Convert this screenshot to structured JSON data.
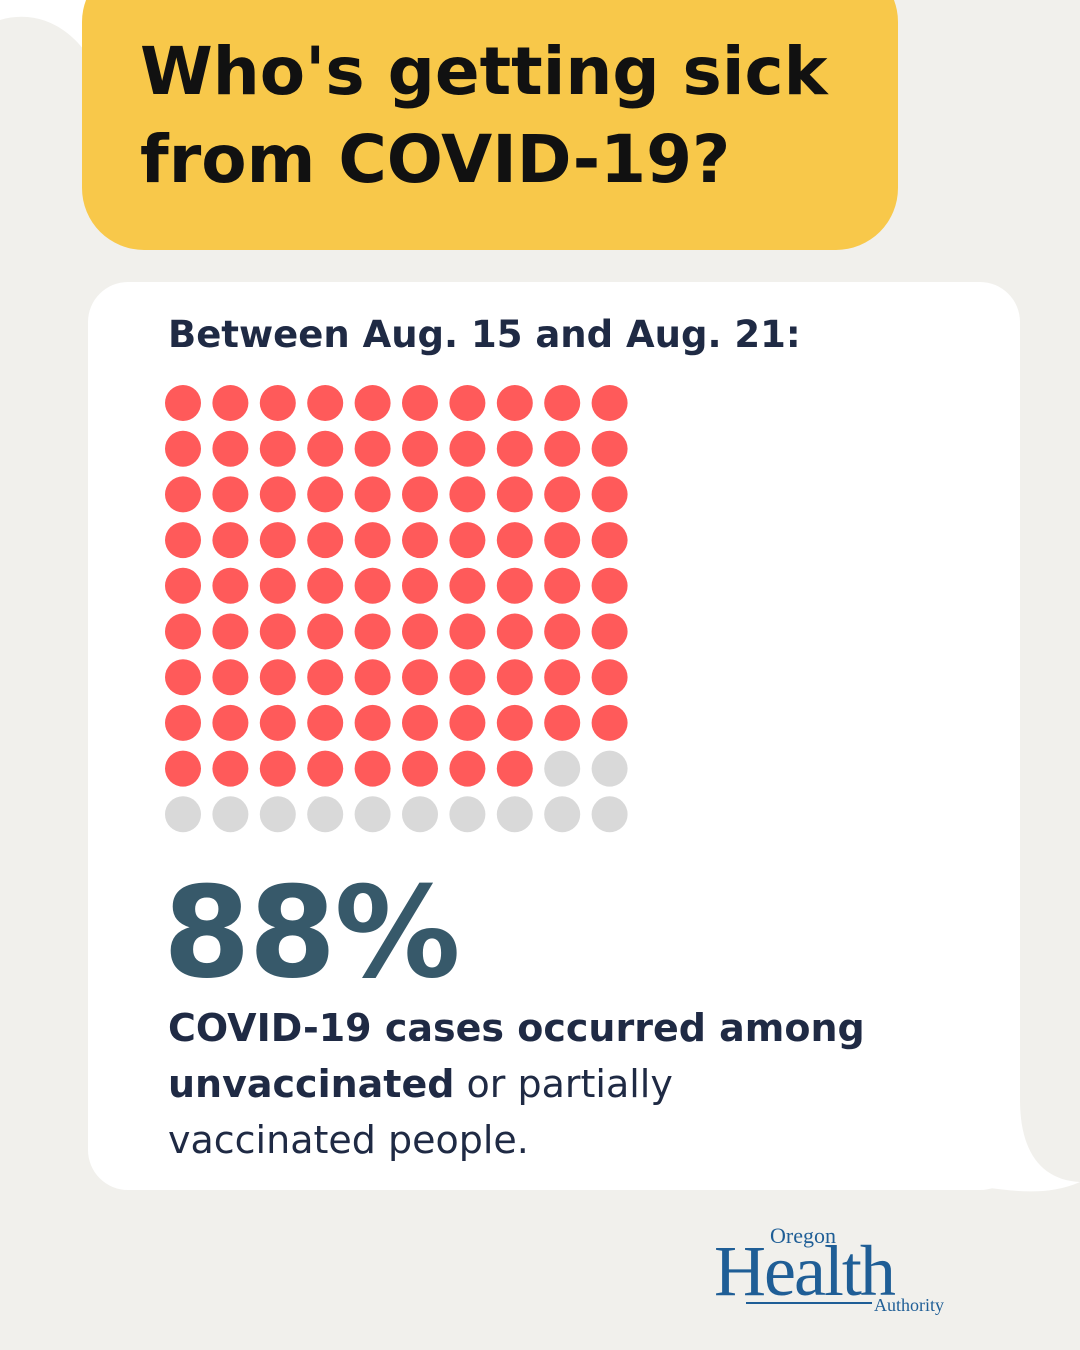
{
  "header": {
    "title_line1": "Who's getting sick",
    "title_line2": "from COVID-19?"
  },
  "card": {
    "subtitle": "Between Aug. 15 and Aug. 21:",
    "stat": "88%",
    "caption_bold_1": "COVID-19 cases occurred among",
    "caption_bold_2": "unvaccinated",
    "caption_rest_2": " or partially",
    "caption_line_3": "vaccinated people."
  },
  "logo": {
    "line1": "Oregon",
    "line2": "Health",
    "line3": "Authority"
  },
  "colors": {
    "background": "#f1f0ec",
    "title_bubble": "#f8c84a",
    "card": "#ffffff",
    "filled_dot": "#ff5a5a",
    "empty_dot": "#d9d9d9",
    "stat": "#37596a",
    "text": "#1f2a44",
    "logo": "#1f5e96"
  },
  "chart_data": {
    "type": "waffle",
    "total": 100,
    "columns": 10,
    "rows": 10,
    "series": [
      {
        "name": "unvaccinated or partially vaccinated",
        "value": 88,
        "color": "#ff5a5a"
      },
      {
        "name": "",
        "value": 12,
        "color": "#d9d9d9"
      }
    ]
  }
}
